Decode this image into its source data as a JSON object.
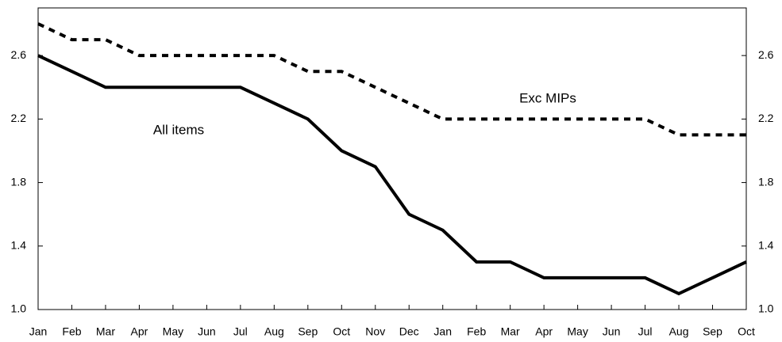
{
  "chart_data": {
    "type": "line",
    "categories": [
      "Jan",
      "Feb",
      "Mar",
      "Apr",
      "May",
      "Jun",
      "Jul",
      "Aug",
      "Sep",
      "Oct",
      "Nov",
      "Dec",
      "Jan",
      "Feb",
      "Mar",
      "Apr",
      "May",
      "Jun",
      "Jul",
      "Aug",
      "Sep",
      "Oct"
    ],
    "series": [
      {
        "name": "All items",
        "color": "#000000",
        "dash": "solid",
        "values": [
          2.6,
          2.5,
          2.4,
          2.4,
          2.4,
          2.4,
          2.4,
          2.3,
          2.2,
          2.0,
          1.9,
          1.6,
          1.5,
          1.3,
          1.3,
          1.2,
          1.2,
          1.2,
          1.2,
          1.1,
          1.2,
          1.3
        ]
      },
      {
        "name": "Exc MIPs",
        "color": "#000000",
        "dash": "dashed",
        "values": [
          2.8,
          2.7,
          2.7,
          2.6,
          2.6,
          2.6,
          2.6,
          2.6,
          2.5,
          2.5,
          2.4,
          2.3,
          2.2,
          2.2,
          2.2,
          2.2,
          2.2,
          2.2,
          2.2,
          2.1,
          2.1,
          2.1
        ]
      }
    ],
    "ylim": [
      1.0,
      2.9
    ],
    "yticks": [
      {
        "value": 1,
        "label": "1.0"
      },
      1.4,
      1.8,
      2.2,
      2.6
    ],
    "y2lim": [
      1.0,
      2.9
    ],
    "y2ticks": [
      {
        "value": 1,
        "label": "1.0"
      },
      1.4,
      1.8,
      2.2,
      2.6
    ],
    "grid": false
  }
}
